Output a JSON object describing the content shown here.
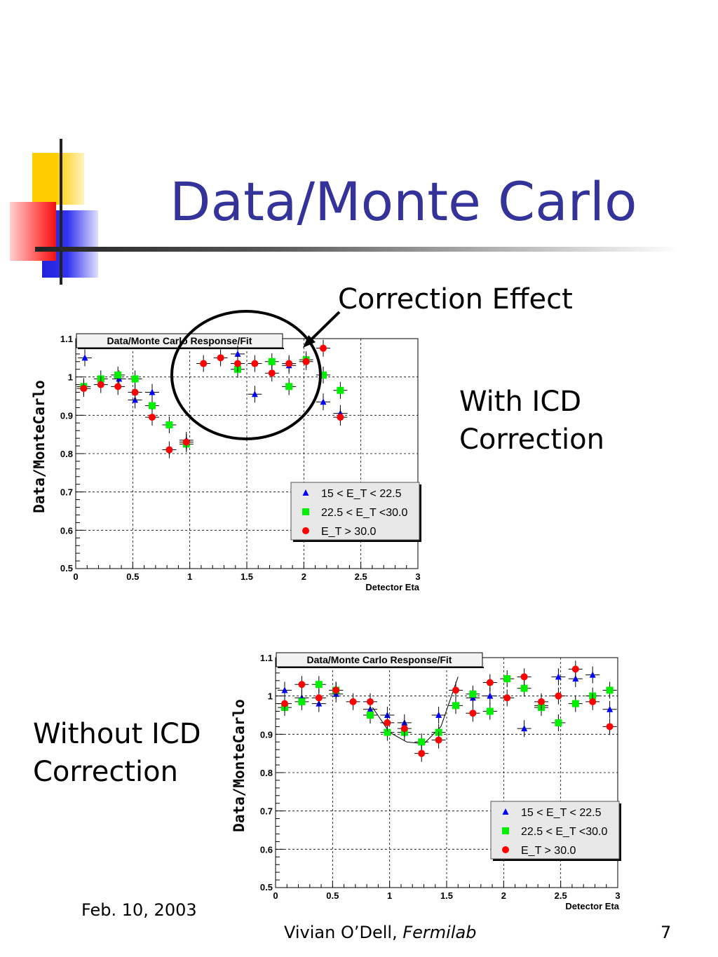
{
  "slide": {
    "title": "Data/Monte Carlo",
    "annotation": "Correction Effect",
    "label_with": [
      "With ICD",
      "Correction"
    ],
    "label_without": [
      "Without ICD",
      "Correction"
    ],
    "footer_date": "Feb. 10, 2003",
    "footer_author": "Vivian O’Dell,",
    "footer_org": "Fermilab",
    "page_number": "7"
  },
  "colors": {
    "title": "#333399",
    "series": [
      "#0000ff",
      "#00ee00",
      "#ff0000"
    ]
  },
  "chart_data": [
    {
      "type": "scatter",
      "title": "Data/Monte Carlo Response/Fit",
      "xlabel": "Detector Eta",
      "ylabel": "Data/MonteCarlo",
      "xlim": [
        0,
        3
      ],
      "ylim": [
        0.5,
        1.1
      ],
      "xticks": [
        "0",
        "0.5",
        "1",
        "1.5",
        "2",
        "2.5",
        "3"
      ],
      "yticks": [
        "0.5",
        "0.6",
        "0.7",
        "0.8",
        "0.9",
        "1",
        "1.1"
      ],
      "grid": true,
      "legend_position": "bottom-right",
      "series": [
        {
          "name": "15 < E_T < 22.5",
          "marker": "triangle",
          "color": "#0000ff",
          "x": [
            0.08,
            0.38,
            0.52,
            0.67,
            0.97,
            1.42,
            1.57,
            1.87,
            2.17,
            2.32
          ],
          "y": [
            1.05,
            0.995,
            0.94,
            0.96,
            0.835,
            1.06,
            0.955,
            1.03,
            0.935,
            0.905
          ]
        },
        {
          "name": "22.5 < E_T <30.0",
          "marker": "square",
          "color": "#00ee00",
          "x": [
            0.07,
            0.22,
            0.37,
            0.52,
            0.67,
            0.82,
            0.97,
            1.42,
            1.72,
            1.87,
            2.02,
            2.17,
            2.32
          ],
          "y": [
            0.975,
            0.995,
            1.005,
            0.995,
            0.925,
            0.875,
            0.825,
            1.02,
            1.04,
            0.975,
            1.045,
            1.005,
            0.965
          ]
        },
        {
          "name": "E_T > 30.0",
          "marker": "circle",
          "color": "#ff0000",
          "x": [
            0.07,
            0.22,
            0.37,
            0.52,
            0.67,
            0.82,
            0.97,
            1.12,
            1.27,
            1.42,
            1.57,
            1.72,
            1.87,
            2.02,
            2.17,
            2.32
          ],
          "y": [
            0.97,
            0.98,
            0.975,
            0.96,
            0.895,
            0.81,
            0.83,
            1.035,
            1.05,
            1.035,
            1.035,
            1.01,
            1.035,
            1.04,
            1.075,
            0.895
          ]
        }
      ]
    },
    {
      "type": "scatter",
      "title": "Data/Monte Carlo Response/Fit",
      "xlabel": "Detector Eta",
      "ylabel": "Data/MonteCarlo",
      "xlim": [
        0,
        3
      ],
      "ylim": [
        0.5,
        1.1
      ],
      "xticks": [
        "0",
        "0.5",
        "1",
        "1.5",
        "2",
        "2.5",
        "3"
      ],
      "yticks": [
        "0.5",
        "0.6",
        "0.7",
        "0.8",
        "0.9",
        "1",
        "1.1"
      ],
      "grid": true,
      "legend_position": "bottom-right",
      "fit_curve": {
        "x": [
          0.85,
          1.0,
          1.15,
          1.3,
          1.45,
          1.6
        ],
        "y": [
          0.97,
          0.905,
          0.88,
          0.875,
          0.92,
          1.05
        ]
      },
      "series": [
        {
          "name": "15 < E_T < 22.5",
          "marker": "triangle",
          "color": "#0000ff",
          "x": [
            0.08,
            0.23,
            0.38,
            0.53,
            0.83,
            0.98,
            1.13,
            1.43,
            1.73,
            1.88,
            2.18,
            2.33,
            2.48,
            2.63,
            2.78,
            2.93
          ],
          "y": [
            1.015,
            0.995,
            0.98,
            1.005,
            0.965,
            0.95,
            0.93,
            0.95,
            0.995,
            1.0,
            0.915,
            0.975,
            1.05,
            1.045,
            1.055,
            0.965
          ]
        },
        {
          "name": "22.5 < E_T <30.0",
          "marker": "square",
          "color": "#00ee00",
          "x": [
            0.08,
            0.23,
            0.38,
            0.53,
            0.83,
            0.98,
            1.13,
            1.28,
            1.43,
            1.58,
            1.73,
            1.88,
            2.03,
            2.18,
            2.33,
            2.48,
            2.63,
            2.78,
            2.93
          ],
          "y": [
            0.97,
            0.985,
            1.03,
            1.015,
            0.95,
            0.905,
            0.905,
            0.88,
            0.905,
            0.975,
            1.005,
            0.96,
            1.045,
            1.02,
            0.97,
            0.93,
            0.98,
            1.0,
            1.015
          ]
        },
        {
          "name": "E_T > 30.0",
          "marker": "circle",
          "color": "#ff0000",
          "x": [
            0.08,
            0.23,
            0.38,
            0.53,
            0.68,
            0.83,
            0.98,
            1.13,
            1.28,
            1.43,
            1.58,
            1.73,
            1.88,
            2.03,
            2.18,
            2.33,
            2.48,
            2.63,
            2.78,
            2.93
          ],
          "y": [
            0.98,
            1.03,
            0.995,
            1.015,
            0.985,
            0.985,
            0.93,
            0.915,
            0.85,
            0.885,
            1.015,
            0.955,
            1.035,
            0.995,
            1.05,
            0.985,
            1.0,
            1.07,
            0.985,
            0.92
          ]
        }
      ]
    }
  ]
}
